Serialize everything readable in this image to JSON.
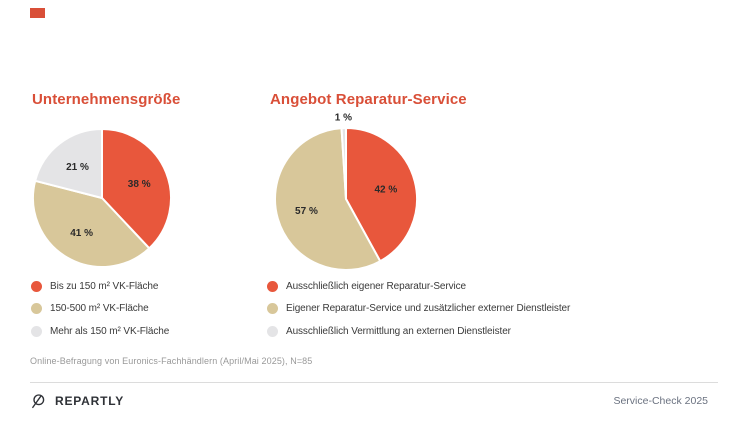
{
  "theme": {
    "accent": "#D94F38",
    "pie_red": "#E8573C",
    "pie_tan": "#D8C79A",
    "pie_gray": "#E4E4E6",
    "text_dark": "#2F3237",
    "text_muted": "#999999",
    "footer_text": "#6B7280",
    "divider": "#DCDCDC"
  },
  "chart_data": [
    {
      "type": "pie",
      "title": "Unternehmensgröße",
      "labels": [
        "Bis zu 150 m² VK-Fläche",
        "150-500 m² VK-Fläche",
        "Mehr als 150 m² VK-Fläche"
      ],
      "values": [
        38,
        41,
        21
      ],
      "unit": "%",
      "value_labels": [
        "38 %",
        "41 %",
        "21 %"
      ],
      "colors": [
        "#E8573C",
        "#D8C79A",
        "#E4E4E6"
      ],
      "start_angle": "12-oclock",
      "direction": "clockwise",
      "legend_position": "below-left"
    },
    {
      "type": "pie",
      "title": "Angebot Reparatur-Service",
      "labels": [
        "Ausschließlich eigener Reparatur-Service",
        "Eigener Reparatur-Service und zusätzlicher externer Dienstleister",
        "Ausschließlich Vermittlung an externen Dienstleister"
      ],
      "values": [
        42,
        57,
        1
      ],
      "unit": "%",
      "value_labels": [
        "42 %",
        "57 %",
        "1 %"
      ],
      "colors": [
        "#E8573C",
        "#D8C79A",
        "#E4E4E6"
      ],
      "start_angle": "12-oclock",
      "direction": "clockwise",
      "legend_position": "below-left"
    }
  ],
  "footnote": "Online-Befragung von Euronics-Fachhändlern (April/Mai 2025), N=85",
  "footer": {
    "brand_name": "REPARTLY",
    "brand_icon": "circle-slash-logo-icon",
    "right_text": "Service-Check 2025"
  }
}
